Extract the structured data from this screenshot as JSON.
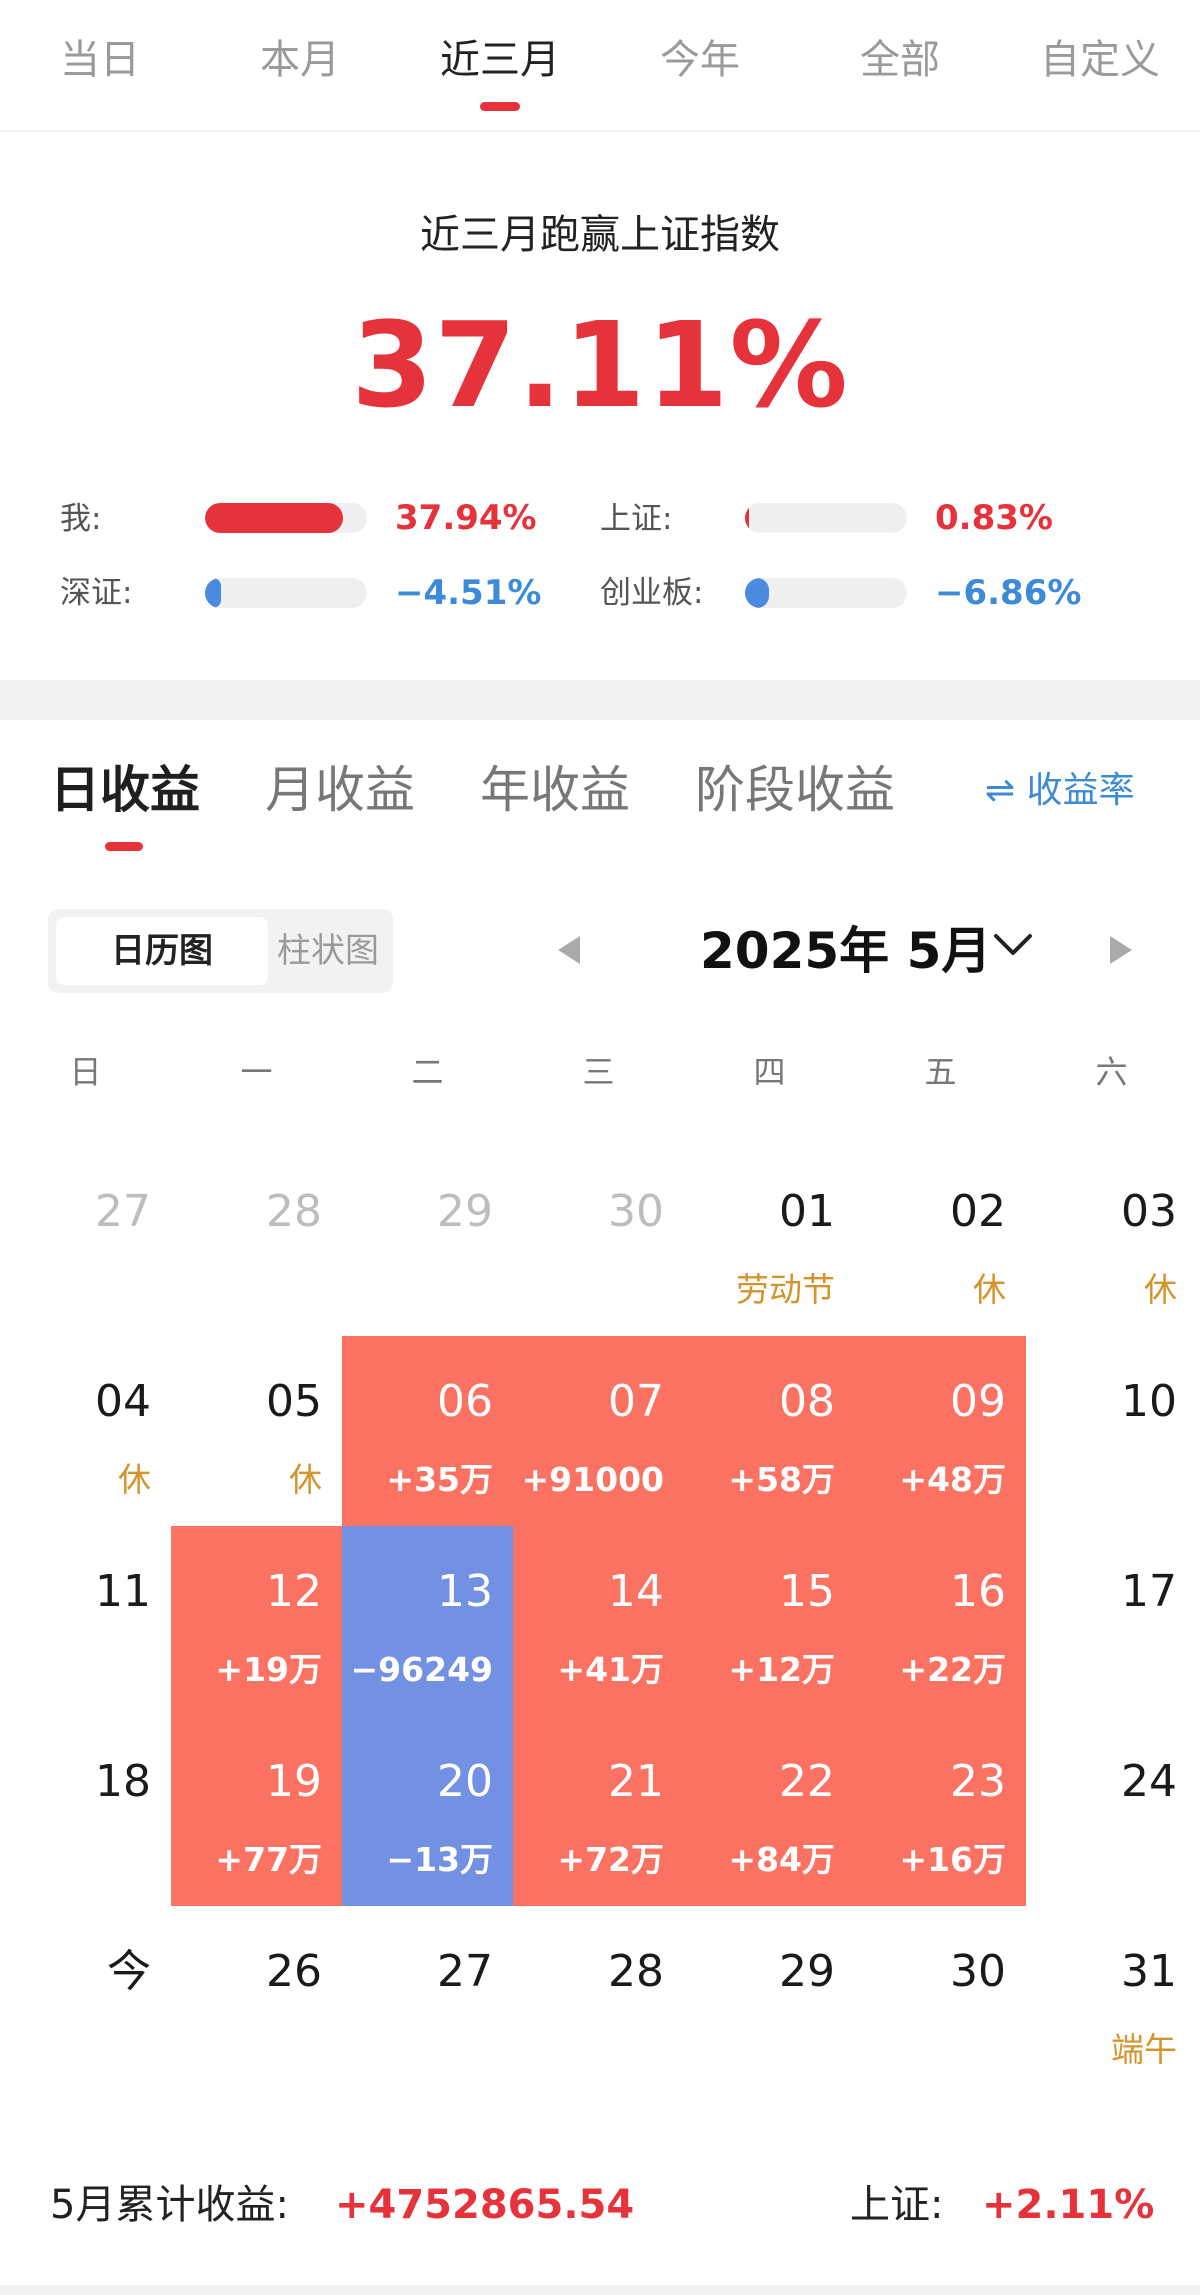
{
  "colors": {
    "accent_red": "#e6323b",
    "accent_blue": "#3d8bd6",
    "gain_cell": "#fb7262",
    "loss_cell": "#7391e2",
    "holiday_text": "#d4942b"
  },
  "period_tabs": [
    "当日",
    "本月",
    "近三月",
    "今年",
    "全部",
    "自定义"
  ],
  "period_active": "近三月",
  "summary": {
    "title": "近三月跑赢上证指数",
    "value": "37.11%"
  },
  "comparisons": [
    {
      "label": "我:",
      "value": "37.94%",
      "ratio": 0.85,
      "color": "#e6323b"
    },
    {
      "label": "上证:",
      "value": "0.83%",
      "ratio": 0.02,
      "color": "#e6323b"
    },
    {
      "label": "深证:",
      "value": "−4.51%",
      "ratio": 0.1,
      "color": "#4a8be0"
    },
    {
      "label": "创业板:",
      "value": "−6.86%",
      "ratio": 0.15,
      "color": "#4a8be0"
    }
  ],
  "income_tabs": [
    "日收益",
    "月收益",
    "年收益",
    "阶段收益"
  ],
  "income_active": "日收益",
  "rate_toggle": {
    "icon": "swap-arrows-icon",
    "label": "⇌ 收益率"
  },
  "view_switch": {
    "active": "日历图",
    "inactive": "柱状图"
  },
  "month_nav": {
    "title": "2025年 5月",
    "prev_icon": "triangle-left-icon",
    "next_icon": "triangle-right-icon",
    "dropdown_icon": "chevron-down-icon"
  },
  "weekdays": [
    "日",
    "一",
    "二",
    "三",
    "四",
    "五",
    "六"
  ],
  "calendar": [
    [
      {
        "day": "27",
        "other": true
      },
      {
        "day": "28",
        "other": true
      },
      {
        "day": "29",
        "other": true
      },
      {
        "day": "30",
        "other": true
      },
      {
        "day": "01",
        "note": "劳动节",
        "kind": "holiday"
      },
      {
        "day": "02",
        "note": "休",
        "kind": "holiday"
      },
      {
        "day": "03",
        "note": "休",
        "kind": "holiday"
      }
    ],
    [
      {
        "day": "04",
        "note": "休",
        "kind": "holiday"
      },
      {
        "day": "05",
        "note": "休",
        "kind": "holiday"
      },
      {
        "day": "06",
        "note": "+35万",
        "kind": "up"
      },
      {
        "day": "07",
        "note": "+91000",
        "kind": "up"
      },
      {
        "day": "08",
        "note": "+58万",
        "kind": "up"
      },
      {
        "day": "09",
        "note": "+48万",
        "kind": "up"
      },
      {
        "day": "10"
      }
    ],
    [
      {
        "day": "11"
      },
      {
        "day": "12",
        "note": "+19万",
        "kind": "up"
      },
      {
        "day": "13",
        "note": "−96249",
        "kind": "down"
      },
      {
        "day": "14",
        "note": "+41万",
        "kind": "up"
      },
      {
        "day": "15",
        "note": "+12万",
        "kind": "up"
      },
      {
        "day": "16",
        "note": "+22万",
        "kind": "up"
      },
      {
        "day": "17"
      }
    ],
    [
      {
        "day": "18"
      },
      {
        "day": "19",
        "note": "+77万",
        "kind": "up"
      },
      {
        "day": "20",
        "note": "−13万",
        "kind": "down"
      },
      {
        "day": "21",
        "note": "+72万",
        "kind": "up"
      },
      {
        "day": "22",
        "note": "+84万",
        "kind": "up"
      },
      {
        "day": "23",
        "note": "+16万",
        "kind": "up"
      },
      {
        "day": "24"
      }
    ],
    [
      {
        "day": "今"
      },
      {
        "day": "26"
      },
      {
        "day": "27"
      },
      {
        "day": "28"
      },
      {
        "day": "29"
      },
      {
        "day": "30"
      },
      {
        "day": "31",
        "note": "端午",
        "kind": "holiday"
      }
    ]
  ],
  "footer": {
    "label": "5月累计收益:",
    "value": "+4752865.54",
    "index_label": "上证:",
    "index_value": "+2.11%"
  }
}
